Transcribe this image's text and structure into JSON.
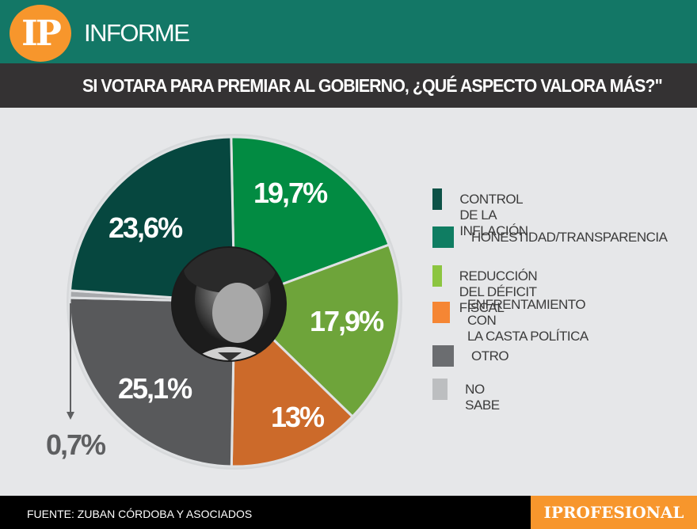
{
  "header": {
    "logo_text": "IP",
    "section_title": "INFORME",
    "question": "SI VOTARA PARA PREMIAR AL GOBIERNO, ¿QUÉ ASPECTO VALORA MÁS?\""
  },
  "legend": {
    "items": [
      {
        "label": "CONTROL DE LA INFLACIÓN",
        "color": "#0d5247"
      },
      {
        "label": "HONESTIDAD/TRANSPARENCIA",
        "color": "#0f7d62"
      },
      {
        "label": "REDUCCIÓN DEL DÉFICIT FISCAL",
        "color": "#8cc540"
      },
      {
        "label": "ENFRENTAMIENTO CON\nLA CASTA POLÍTICA",
        "color": "#f58634"
      },
      {
        "label": "OTRO",
        "color": "#6b6d70"
      },
      {
        "label": "NO SABE",
        "color": "#bcbec0"
      }
    ]
  },
  "slice_labels": {
    "control": "23,6%",
    "honestidad": "19,7%",
    "deficit": "17,9%",
    "casta": "13%",
    "otro": "25,1%",
    "nosabe": "0,7%"
  },
  "footer": {
    "source": "FUENTE: ZUBAN CÓRDOBA Y ASOCIADOS",
    "brand": "IPROFESIONAL"
  },
  "chart_data": {
    "type": "pie",
    "title": "SI VOTARA PARA PREMIAR AL GOBIERNO, ¿QUÉ ASPECTO VALORA MÁS?",
    "categories": [
      "Honestidad/Transparencia",
      "Reducción del déficit fiscal",
      "Enfrentamiento con la casta política",
      "Otro",
      "No sabe",
      "Control de la inflación"
    ],
    "values": [
      19.7,
      17.9,
      13.0,
      25.1,
      0.7,
      23.6
    ],
    "colors": [
      "#028b42",
      "#6ea43a",
      "#cc6a2a",
      "#58595b",
      "#a7a9ac",
      "#06473f"
    ],
    "start_angle": "12 o'clock, clockwise",
    "legend_position": "right",
    "source": "Zuban Córdoba y Asociados"
  }
}
